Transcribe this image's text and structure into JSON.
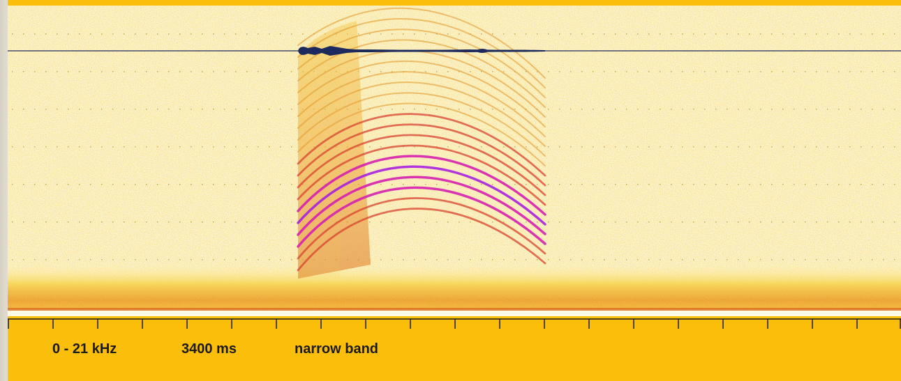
{
  "colors": {
    "frame": "#fbbe0b",
    "background": "#fdf6d2",
    "noise_low": "#f7d24a",
    "harmonic_weak": "#e59a2e",
    "harmonic_mid": "#d9422f",
    "harmonic_strong": "#d61fb0",
    "harmonic_peak": "#a81fe0",
    "waveform": "#1c2a5e",
    "axis": "#1a1a1a"
  },
  "spectrogram": {
    "frequency_range": "0 - 21 kHz",
    "duration": "3400 ms",
    "band_mode": "narrow band"
  },
  "time_axis": {
    "tick_count": 20
  }
}
